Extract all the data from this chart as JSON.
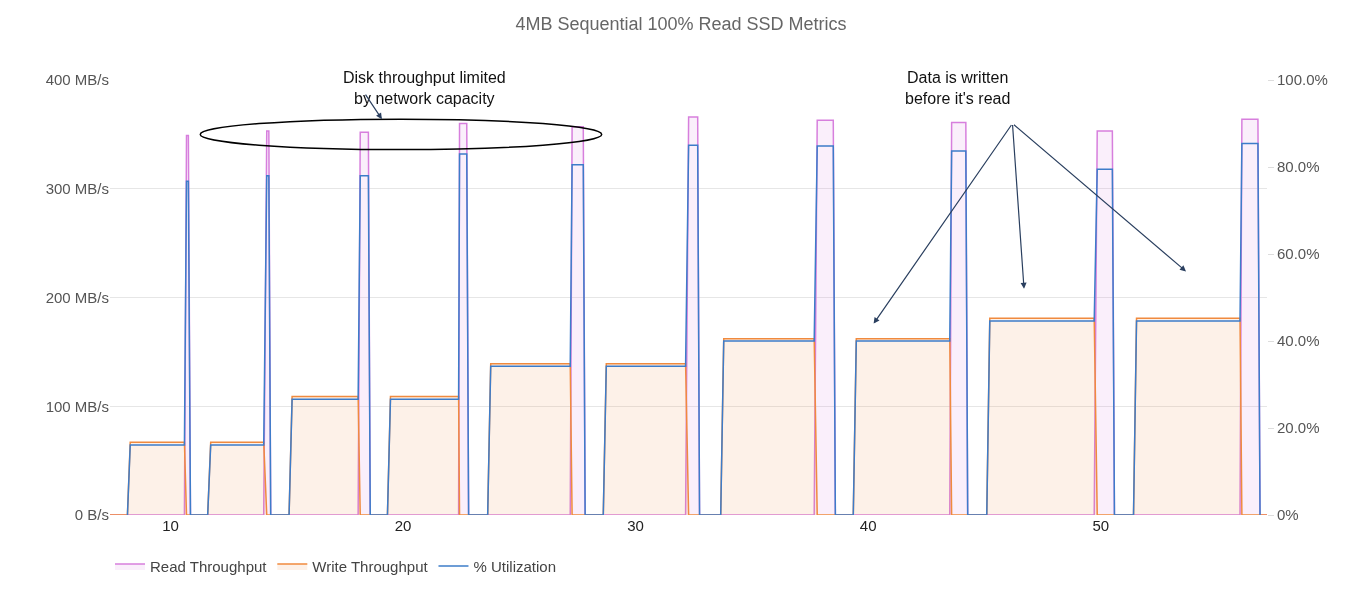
{
  "chart_data": {
    "type": "area",
    "title": "4MB Sequential 100% Read SSD Metrics",
    "annotations": [
      "Disk throughput limited\nby network capacity",
      "Data is written\nbefore it's read"
    ],
    "xlim": [
      7.4,
      57.15
    ],
    "xticks": [
      10,
      20,
      30,
      40,
      50
    ],
    "ylim": [
      0,
      400
    ],
    "yticks": [
      {
        "value": 0,
        "label": "0 B/s"
      },
      {
        "value": 100,
        "label": "100 MB/s"
      },
      {
        "value": 200,
        "label": "200 MB/s"
      },
      {
        "value": 300,
        "label": "300 MB/s"
      },
      {
        "value": 400,
        "label": "400 MB/s"
      }
    ],
    "y2lim": [
      0,
      100
    ],
    "y2ticks": [
      {
        "value": 0,
        "label": "0%"
      },
      {
        "value": 20,
        "label": "20.0%"
      },
      {
        "value": 40,
        "label": "40.0%"
      },
      {
        "value": 60,
        "label": "60.0%"
      },
      {
        "value": 80,
        "label": "80.0%"
      },
      {
        "value": 100,
        "label": "100.0%"
      }
    ],
    "grid": "y",
    "legend": "bottom",
    "series": [
      {
        "name": "Read Throughput",
        "color": "#d77fdd",
        "x": [
          7.4,
          10.6,
          10.69,
          10.77,
          10.86,
          14.01,
          14.14,
          14.23,
          14.31,
          18.07,
          18.16,
          18.51,
          18.59,
          22.39,
          22.43,
          22.74,
          22.82,
          27.19,
          27.27,
          27.75,
          27.83,
          32.15,
          32.28,
          32.67,
          32.75,
          37.68,
          37.81,
          38.5,
          38.59,
          43.51,
          43.59,
          44.2,
          44.28,
          49.72,
          49.85,
          50.5,
          50.59,
          55.99,
          56.07,
          56.76,
          56.85,
          57.15
        ],
        "values": [
          0,
          0,
          349,
          349,
          0,
          0,
          353,
          353,
          0,
          0,
          352,
          352,
          0,
          0,
          360,
          360,
          0,
          0,
          357,
          357,
          0,
          0,
          366,
          366,
          0,
          0,
          363,
          363,
          0,
          0,
          361,
          361,
          0,
          0,
          353,
          353,
          0,
          0,
          364,
          364,
          0,
          0
        ]
      },
      {
        "name": "Write Throughput",
        "color": "#f08a3e",
        "x": [
          7.4,
          8.15,
          8.27,
          10.6,
          10.69,
          11.6,
          11.73,
          14.01,
          14.14,
          15.1,
          15.23,
          18.07,
          18.16,
          19.33,
          19.46,
          22.39,
          22.43,
          23.64,
          23.77,
          27.19,
          27.27,
          28.61,
          28.74,
          32.15,
          32.28,
          33.66,
          33.79,
          37.68,
          37.81,
          39.36,
          39.49,
          43.51,
          43.59,
          45.1,
          45.23,
          49.72,
          49.85,
          51.41,
          51.54,
          55.99,
          56.07,
          57.15
        ],
        "values": [
          0,
          0,
          67,
          67,
          0,
          0,
          67,
          67,
          0,
          0,
          109,
          109,
          0,
          0,
          109,
          109,
          0,
          0,
          139,
          139,
          0,
          0,
          139,
          139,
          0,
          0,
          162,
          162,
          0,
          0,
          162,
          162,
          0,
          0,
          181,
          181,
          0,
          0,
          181,
          181,
          0,
          0
        ]
      },
      {
        "name": "% Utilization",
        "color": "#3d7cc9",
        "axis": "y2",
        "type": "line",
        "x": [
          8.15,
          8.27,
          10.6,
          10.69,
          10.77,
          10.86,
          11.6,
          11.73,
          14.01,
          14.14,
          14.23,
          14.31,
          15.1,
          15.23,
          18.07,
          18.16,
          18.51,
          18.59,
          19.33,
          19.46,
          22.39,
          22.43,
          22.74,
          22.82,
          23.64,
          23.77,
          27.19,
          27.27,
          27.75,
          27.83,
          28.61,
          28.74,
          32.15,
          32.28,
          32.67,
          32.75,
          33.66,
          33.79,
          37.68,
          37.81,
          38.5,
          38.59,
          39.36,
          39.49,
          43.51,
          43.59,
          44.2,
          44.28,
          45.1,
          45.23,
          49.72,
          49.85,
          50.5,
          50.59,
          51.41,
          51.54,
          55.99,
          56.07,
          56.76,
          56.85
        ],
        "values": [
          0,
          16.1,
          16.1,
          76.7,
          76.7,
          0,
          0,
          16.1,
          16.1,
          78,
          78,
          0,
          0,
          26.6,
          26.6,
          78,
          78,
          0,
          0,
          26.6,
          26.6,
          83,
          83,
          0,
          0,
          34.2,
          34.2,
          80.5,
          80.5,
          0,
          0,
          34.2,
          34.2,
          85,
          85,
          0,
          0,
          40,
          40,
          84.8,
          84.8,
          0,
          0,
          40,
          40,
          83.7,
          83.7,
          0,
          0,
          44.6,
          44.6,
          79.5,
          79.5,
          0,
          0,
          44.6,
          44.6,
          85.4,
          85.4,
          0
        ]
      }
    ]
  }
}
